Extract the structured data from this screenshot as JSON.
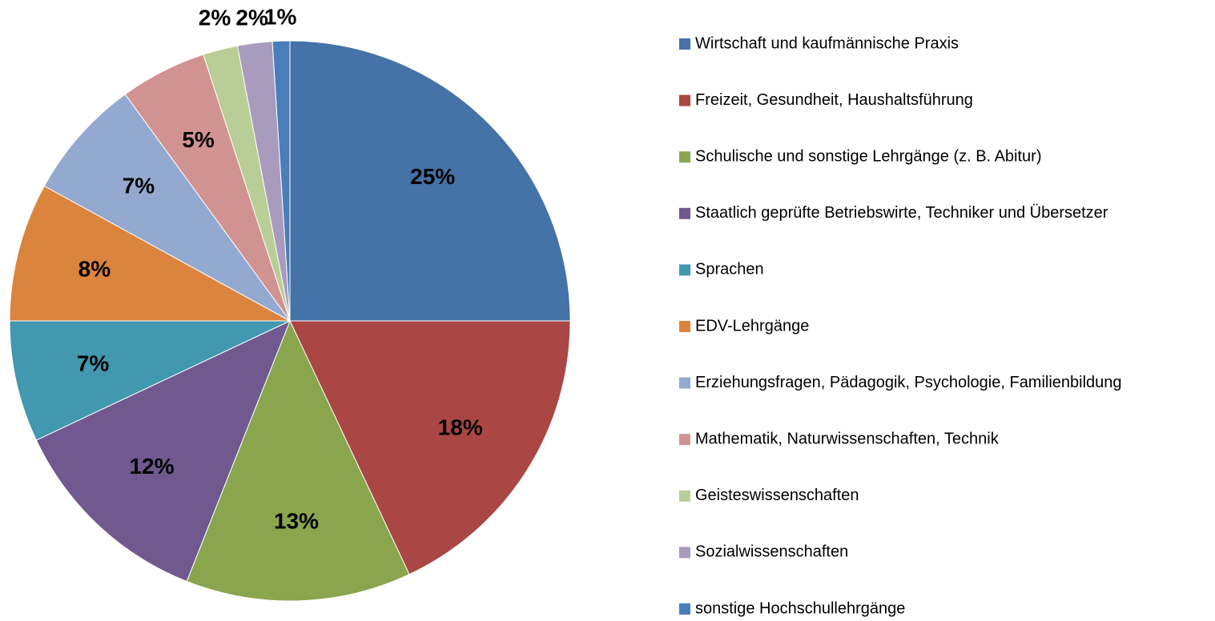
{
  "chart_data": {
    "type": "pie",
    "categories": [
      "Wirtschaft und kaufmännische Praxis",
      "Freizeit, Gesundheit, Haushaltsführung",
      "Schulische und sonstige Lehrgänge (z. B. Abitur)",
      "Staatlich geprüfte Betriebswirte, Techniker und Übersetzer",
      "Sprachen",
      "EDV-Lehrgänge",
      "Erziehungsfragen, Pädagogik, Psychologie, Familienbildung",
      "Mathematik, Naturwissenschaften, Technik",
      "Geisteswissenschaften",
      "Sozialwissenschaften",
      "sonstige Hochschullehrgänge"
    ],
    "values": [
      25,
      18,
      13,
      12,
      7,
      8,
      7,
      5,
      2,
      2,
      1
    ],
    "value_labels": [
      "25%",
      "18%",
      "13%",
      "12%",
      "7%",
      "8%",
      "7%",
      "5%",
      "2%",
      "2%",
      "1%"
    ],
    "colors": [
      "#4572a7",
      "#aa4643",
      "#89a54e",
      "#71588f",
      "#4198af",
      "#db843d",
      "#93a9cf",
      "#d19392",
      "#b9cd96",
      "#a99bbd",
      "#4a7ebb"
    ],
    "legend": "right"
  }
}
